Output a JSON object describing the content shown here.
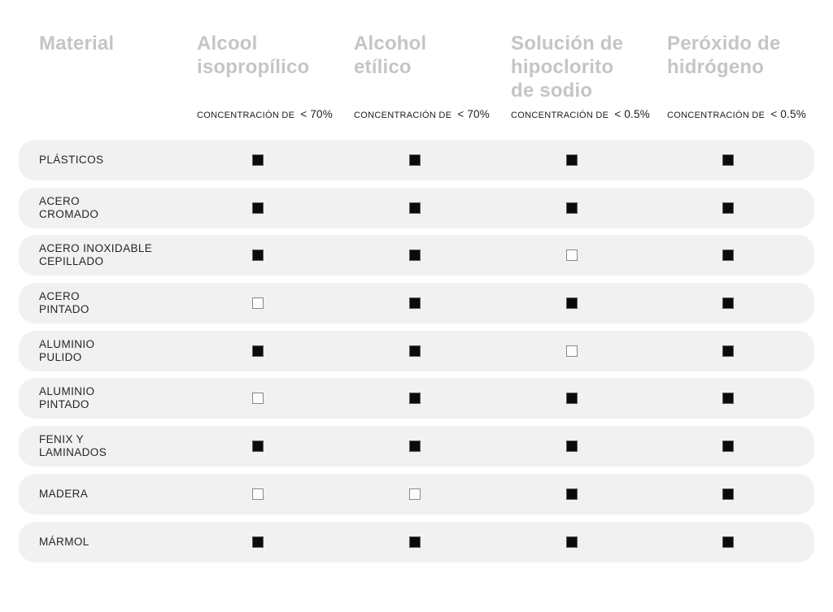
{
  "header": {
    "material_column_title": "Material",
    "columns": [
      {
        "title": "Alcool\nisopropílico",
        "concentration_label": "CONCENTRACIÓN DE",
        "concentration_value": "< 70%"
      },
      {
        "title": "Alcohol\netílico",
        "concentration_label": "CONCENTRACIÓN DE",
        "concentration_value": "< 70%"
      },
      {
        "title": "Solución de\nhipoclorito\nde sodio",
        "concentration_label": "CONCENTRACIÓN DE",
        "concentration_value": "< 0.5%"
      },
      {
        "title": "Peróxido de\nhidrógeno",
        "concentration_label": "CONCENTRACIÓN DE",
        "concentration_value": "< 0.5%"
      }
    ]
  },
  "rows": [
    {
      "material": "PLÁSTICOS",
      "cells": [
        1,
        1,
        1,
        1
      ]
    },
    {
      "material": "ACERO\nCROMADO",
      "cells": [
        1,
        1,
        1,
        1
      ]
    },
    {
      "material": "ACERO INOXIDABLE\nCEPILLADO",
      "cells": [
        1,
        1,
        0,
        1
      ]
    },
    {
      "material": "ACERO\nPINTADO",
      "cells": [
        0,
        1,
        1,
        1
      ]
    },
    {
      "material": "ALUMINIO\nPULIDO",
      "cells": [
        1,
        1,
        0,
        1
      ]
    },
    {
      "material": "ALUMINIO\nPINTADO",
      "cells": [
        0,
        1,
        1,
        1
      ]
    },
    {
      "material": "FENIX Y\nLAMINADOS",
      "cells": [
        1,
        1,
        1,
        1
      ]
    },
    {
      "material": "MADERA",
      "cells": [
        0,
        0,
        1,
        1
      ]
    },
    {
      "material": "MÁRMOL",
      "cells": [
        1,
        1,
        1,
        1
      ]
    }
  ],
  "icons": {
    "filled": "filled-square-icon",
    "empty": "empty-square-icon"
  },
  "colors": {
    "header_text": "#c5c5c5",
    "body_text": "#252525",
    "row_background": "#f1f1f1",
    "square_fill": "#0b0b0b",
    "square_border": "#898989",
    "page_background": "#ffffff"
  },
  "chart_data": {
    "type": "table",
    "title": "",
    "columns": [
      "Material",
      "Alcool isopropílico — CONCENTRACIÓN DE < 70%",
      "Alcohol etílico — CONCENTRACIÓN DE < 70%",
      "Solución de hipoclorito de sodio — CONCENTRACIÓN DE < 0.5%",
      "Peróxido de hidrógeno — CONCENTRACIÓN DE < 0.5%"
    ],
    "rows": [
      {
        "material": "PLÁSTICOS",
        "filled": [
          true,
          true,
          true,
          true
        ]
      },
      {
        "material": "ACERO CROMADO",
        "filled": [
          true,
          true,
          true,
          true
        ]
      },
      {
        "material": "ACERO INOXIDABLE CEPILLADO",
        "filled": [
          true,
          true,
          false,
          true
        ]
      },
      {
        "material": "ACERO PINTADO",
        "filled": [
          false,
          true,
          true,
          true
        ]
      },
      {
        "material": "ALUMINIO PULIDO",
        "filled": [
          true,
          true,
          false,
          true
        ]
      },
      {
        "material": "ALUMINIO PINTADO",
        "filled": [
          false,
          true,
          true,
          true
        ]
      },
      {
        "material": "FENIX Y LAMINADOS",
        "filled": [
          true,
          true,
          true,
          true
        ]
      },
      {
        "material": "MADERA",
        "filled": [
          false,
          false,
          true,
          true
        ]
      },
      {
        "material": "MÁRMOL",
        "filled": [
          true,
          true,
          true,
          true
        ]
      }
    ],
    "cell_glyphs": {
      "filled": "■",
      "empty": "□"
    },
    "layout": {
      "grid": false,
      "legend": false,
      "row_style": "rounded-pill-bands"
    }
  }
}
